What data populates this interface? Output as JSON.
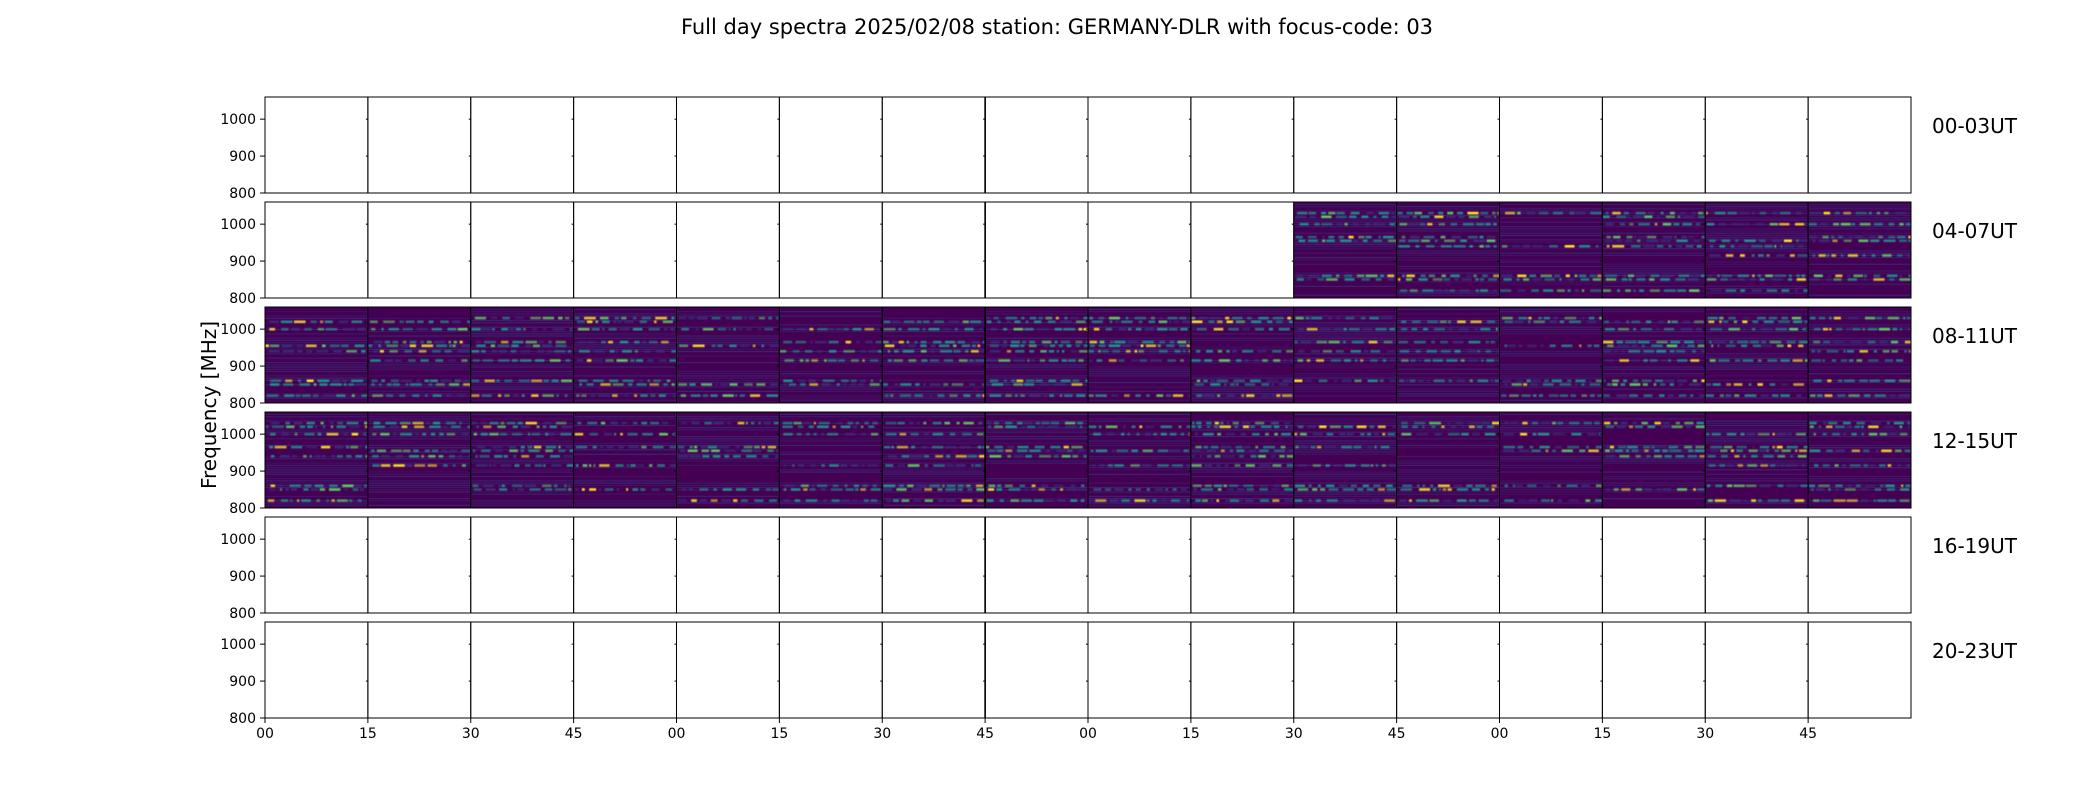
{
  "chart_data": {
    "type": "heatmap",
    "title": "Full day spectra 2025/02/08 station: GERMANY-DLR with focus-code: 03",
    "ylabel": "Frequency [MHz]",
    "xlabel": "",
    "ylim": [
      800,
      1060
    ],
    "yticks": [
      800,
      900,
      1000
    ],
    "xticks": [
      "00",
      "15",
      "30",
      "45",
      "00",
      "15",
      "30",
      "45",
      "00",
      "15",
      "30",
      "45",
      "00",
      "15",
      "30",
      "45"
    ],
    "colormap": "viridis",
    "colors": {
      "background": "#440154",
      "low": "#3b2d78",
      "mid": "#21918c",
      "high": "#5ec962",
      "peak": "#fde725"
    },
    "panels": [
      {
        "label": "00-03UT",
        "segments_with_data": []
      },
      {
        "label": "04-07UT",
        "segments_with_data": [
          10,
          11,
          12,
          13,
          14,
          15
        ]
      },
      {
        "label": "08-11UT",
        "segments_with_data": [
          0,
          1,
          2,
          3,
          4,
          5,
          6,
          7,
          8,
          9,
          10,
          11,
          12,
          13,
          14,
          15
        ]
      },
      {
        "label": "12-15UT",
        "segments_with_data": [
          0,
          1,
          2,
          3,
          4,
          5,
          6,
          7,
          8,
          9,
          10,
          11,
          12,
          13,
          14,
          15
        ]
      },
      {
        "label": "16-19UT",
        "segments_with_data": []
      },
      {
        "label": "20-23UT",
        "segments_with_data": []
      }
    ],
    "segments_per_panel": 16,
    "interference_bands_mhz": [
      1030,
      1020,
      1000,
      965,
      955,
      940,
      915,
      860,
      850,
      820
    ]
  }
}
